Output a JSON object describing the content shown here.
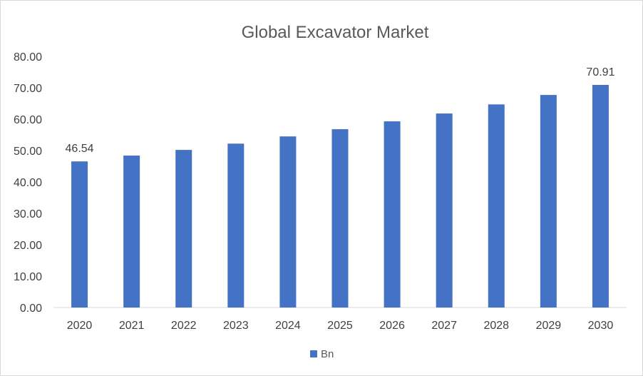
{
  "chart_data": {
    "type": "bar",
    "title": "Global Excavator Market",
    "xlabel": "",
    "ylabel": "",
    "categories": [
      "2020",
      "2021",
      "2022",
      "2023",
      "2024",
      "2025",
      "2026",
      "2027",
      "2028",
      "2029",
      "2030"
    ],
    "series": [
      {
        "name": "Bn",
        "color": "#4472c4",
        "values": [
          46.54,
          48.4,
          50.2,
          52.2,
          54.5,
          56.8,
          59.3,
          61.8,
          64.7,
          67.7,
          70.91
        ]
      }
    ],
    "data_labels": [
      {
        "index": 0,
        "text": "46.54"
      },
      {
        "index": 10,
        "text": "70.91"
      }
    ],
    "ylim": [
      0,
      80
    ],
    "yticks": [
      "0.00",
      "10.00",
      "20.00",
      "30.00",
      "40.00",
      "50.00",
      "60.00",
      "70.00",
      "80.00"
    ],
    "grid": false,
    "legend_position": "bottom"
  }
}
